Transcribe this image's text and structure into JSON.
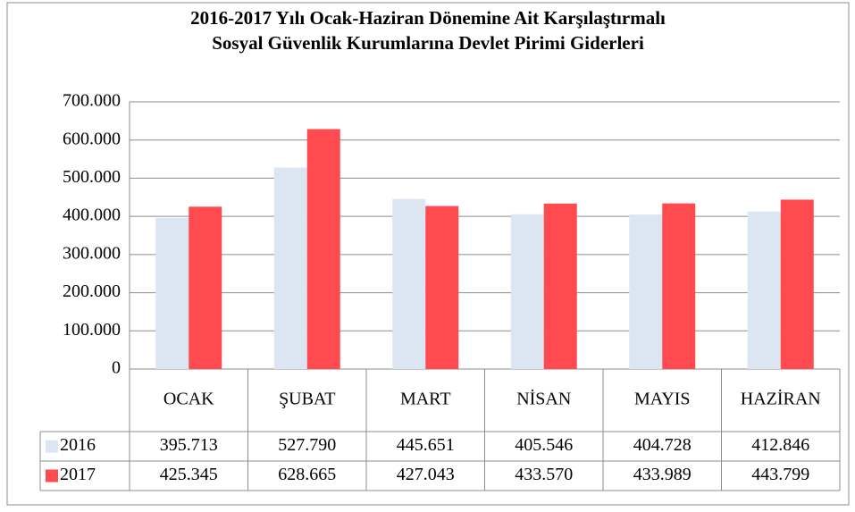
{
  "chart_data": {
    "type": "bar",
    "title": [
      "2016-2017 Yılı Ocak-Haziran Dönemine Ait Karşılaştırmalı",
      "Sosyal Güvenlik Kurumlarına Devlet Pirimi Giderleri"
    ],
    "categories": [
      "OCAK",
      "ŞUBAT",
      "MART",
      "NİSAN",
      "MAYIS",
      "HAZİRAN"
    ],
    "series": [
      {
        "name": "2016",
        "color": "#dce6f2",
        "values": [
          395713,
          527790,
          445651,
          405546,
          404728,
          412846
        ],
        "value_labels": [
          "395.713",
          "527.790",
          "445.651",
          "405.546",
          "404.728",
          "412.846"
        ]
      },
      {
        "name": "2017",
        "color": "#ff4b4f",
        "values": [
          425345,
          628665,
          427043,
          433570,
          433989,
          443799
        ],
        "value_labels": [
          "425.345",
          "628.665",
          "427.043",
          "433.570",
          "433.989",
          "443.799"
        ]
      }
    ],
    "ylim": [
      0,
      700000
    ],
    "yticks": [
      0,
      {
        "value": 100000,
        "label": "100.000"
      },
      {
        "value": 200000,
        "label": "200.000"
      },
      {
        "value": 300000,
        "label": "300.000"
      },
      {
        "value": 400000,
        "label": "400.000"
      },
      {
        "value": 500000,
        "label": "500.000"
      },
      {
        "value": 600000,
        "label": "600.000"
      },
      {
        "value": 700000,
        "label": "700.000"
      }
    ],
    "grid": true
  }
}
